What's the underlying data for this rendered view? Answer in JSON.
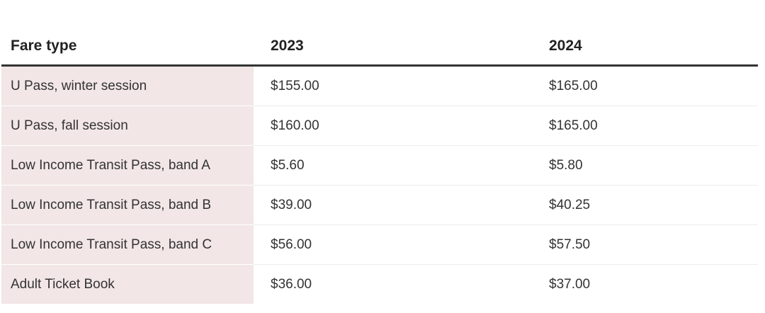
{
  "table": {
    "headers": [
      "Fare type",
      "2023",
      "2024"
    ],
    "rows": [
      {
        "fare_type": "U Pass, winter session",
        "y2023": "$155.00",
        "y2024": "$165.00"
      },
      {
        "fare_type": "U Pass, fall session",
        "y2023": "$160.00",
        "y2024": "$165.00"
      },
      {
        "fare_type": "Low Income Transit Pass, band A",
        "y2023": "$5.60",
        "y2024": "$5.80"
      },
      {
        "fare_type": "Low Income Transit Pass, band B",
        "y2023": "$39.00",
        "y2024": "$40.25"
      },
      {
        "fare_type": "Low Income Transit Pass, band C",
        "y2023": "$56.00",
        "y2024": "$57.50"
      },
      {
        "fare_type": "Adult Ticket Book",
        "y2023": "$36.00",
        "y2024": "$37.00"
      }
    ]
  },
  "colors": {
    "label_column_bg": "#f2e6e7",
    "header_rule": "#333333",
    "row_divider": "#ececec"
  }
}
